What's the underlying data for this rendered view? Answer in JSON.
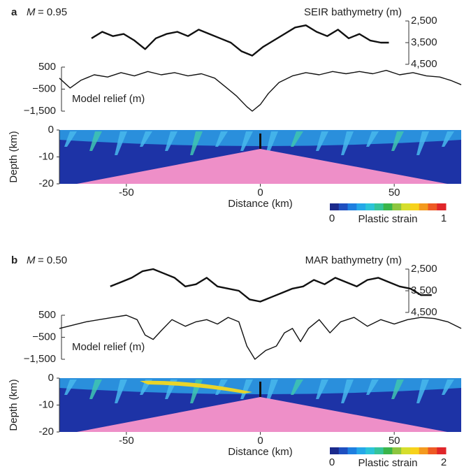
{
  "panels": [
    {
      "label": "a",
      "model_symbol": "M",
      "model_value": "= 0.95",
      "xlim": [
        -75,
        75
      ],
      "bathymetry": {
        "title": "SEIR bathymetry (m)",
        "x": [
          -63,
          -59,
          -55,
          -51,
          -47,
          -43,
          -39,
          -35,
          -31,
          -27,
          -23,
          -19,
          -15,
          -11,
          -7,
          -3,
          1,
          5,
          9,
          13,
          17,
          21,
          25,
          29,
          33,
          37,
          41,
          45,
          48
        ],
        "values": [
          3300,
          3000,
          3200,
          3100,
          3400,
          3800,
          3300,
          3100,
          3000,
          3200,
          2900,
          3100,
          3300,
          3500,
          3900,
          4100,
          3700,
          3400,
          3100,
          2800,
          2700,
          3000,
          3200,
          2900,
          3300,
          3100,
          3400,
          3500,
          3500
        ],
        "ylim": [
          4500,
          2500
        ],
        "yticks": [
          {
            "value": 2500,
            "label": "2,500"
          },
          {
            "value": 3500,
            "label": "3,500"
          },
          {
            "value": 4500,
            "label": "4,500"
          }
        ]
      },
      "relief": {
        "title": "Model relief (m)",
        "x": [
          -75,
          -71,
          -67,
          -62,
          -57,
          -52,
          -47,
          -42,
          -37,
          -32,
          -27,
          -22,
          -17,
          -13,
          -9,
          -5,
          -3,
          0,
          3,
          7,
          12,
          17,
          22,
          27,
          32,
          37,
          42,
          47,
          52,
          57,
          62,
          67,
          71,
          75
        ],
        "values": [
          0,
          -450,
          -100,
          150,
          50,
          250,
          100,
          300,
          150,
          250,
          100,
          200,
          0,
          -400,
          -800,
          -1300,
          -1500,
          -1200,
          -700,
          -200,
          100,
          250,
          150,
          300,
          200,
          300,
          200,
          350,
          150,
          250,
          100,
          50,
          -100,
          -300
        ],
        "ylim": [
          -1500,
          500
        ],
        "yticks": [
          500,
          {
            "value": -500,
            "label": "−500"
          },
          {
            "value": -1500,
            "label": "−1,500"
          }
        ]
      },
      "section": {
        "ylabel": "Depth (km)",
        "xlabel": "Distance (km)",
        "ylim": [
          -20,
          0
        ],
        "yticks": [
          0,
          -10,
          -20
        ],
        "xticks": [
          -50,
          0,
          50
        ]
      },
      "colorbar": {
        "label": "Plastic strain",
        "ticks": [
          0,
          1
        ]
      }
    },
    {
      "label": "b",
      "model_symbol": "M",
      "model_value": "= 0.50",
      "xlim": [
        -75,
        75
      ],
      "bathymetry": {
        "title": "MAR bathymetry (m)",
        "x": [
          -56,
          -52,
          -48,
          -44,
          -40,
          -36,
          -32,
          -28,
          -24,
          -20,
          -16,
          -12,
          -8,
          -4,
          0,
          4,
          8,
          12,
          16,
          20,
          24,
          28,
          32,
          36,
          40,
          44,
          48,
          52,
          56,
          60,
          64
        ],
        "values": [
          3300,
          3100,
          2900,
          2600,
          2500,
          2700,
          2900,
          3300,
          3200,
          2900,
          3300,
          3400,
          3500,
          3900,
          4000,
          3800,
          3600,
          3400,
          3300,
          3000,
          3200,
          2900,
          3100,
          3300,
          3000,
          2900,
          3100,
          3300,
          3400,
          3700,
          3700
        ],
        "ylim": [
          4500,
          2500
        ],
        "yticks": [
          {
            "value": 2500,
            "label": "2,500"
          },
          {
            "value": 3500,
            "label": "3,500"
          },
          {
            "value": 4500,
            "label": "4,500"
          }
        ]
      },
      "relief": {
        "title": "Model relief (m)",
        "x": [
          -75,
          -65,
          -55,
          -50,
          -46,
          -43,
          -40,
          -37,
          -33,
          -28,
          -24,
          -20,
          -16,
          -12,
          -8,
          -5,
          -2,
          2,
          6,
          9,
          12,
          15,
          18,
          22,
          26,
          30,
          35,
          40,
          45,
          50,
          55,
          60,
          65,
          70,
          75
        ],
        "values": [
          -100,
          200,
          400,
          500,
          300,
          -400,
          -600,
          -200,
          300,
          0,
          200,
          300,
          100,
          400,
          200,
          -900,
          -1500,
          -1100,
          -900,
          -300,
          -100,
          -700,
          -100,
          300,
          -300,
          200,
          400,
          0,
          300,
          100,
          300,
          400,
          350,
          200,
          -100
        ],
        "ylim": [
          -1500,
          500
        ],
        "yticks": [
          500,
          {
            "value": -500,
            "label": "−500"
          },
          {
            "value": -1500,
            "label": "−1,500"
          }
        ]
      },
      "section": {
        "ylabel": "Depth (km)",
        "xlabel": "Distance (km)",
        "ylim": [
          -20,
          0
        ],
        "yticks": [
          0,
          -10,
          -20
        ],
        "xticks": [
          -50,
          0,
          50
        ]
      },
      "colorbar": {
        "label": "Plastic strain",
        "ticks": [
          0,
          2
        ]
      }
    }
  ]
}
